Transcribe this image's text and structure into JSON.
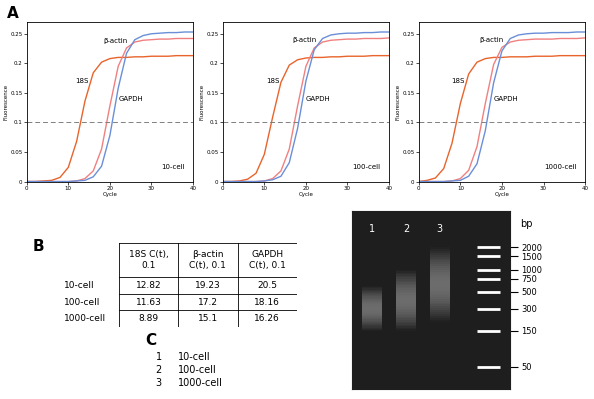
{
  "panel_labels": [
    "A",
    "B",
    "C"
  ],
  "chart_data": [
    {
      "type": "line",
      "annotations": [
        "10-cell"
      ],
      "x_label": "Cycle",
      "y_label": "Fluorescence",
      "threshold": 0.1,
      "xlim": [
        0,
        40
      ],
      "xticks": [
        0,
        10,
        20,
        30,
        40
      ],
      "ylim": [
        0,
        0.27
      ],
      "yticks": [
        0,
        0.05,
        0.1,
        0.15,
        0.2,
        0.25
      ],
      "x": [
        0,
        2,
        4,
        6,
        8,
        10,
        12,
        14,
        16,
        18,
        20,
        22,
        24,
        26,
        28,
        30,
        32,
        34,
        36,
        38,
        40
      ],
      "series": [
        {
          "name": "18S",
          "color": "#e8642c",
          "values": [
            0,
            0,
            0.001,
            0.002,
            0.007,
            0.024,
            0.068,
            0.136,
            0.184,
            0.202,
            0.208,
            0.21,
            0.21,
            0.211,
            0.211,
            0.212,
            0.212,
            0.212,
            0.213,
            0.213,
            0.213
          ]
        },
        {
          "name": "β-actin",
          "color": "#f08080",
          "values": [
            0,
            0,
            0,
            0,
            0,
            0,
            0.001,
            0.005,
            0.018,
            0.055,
            0.128,
            0.195,
            0.226,
            0.236,
            0.239,
            0.24,
            0.241,
            0.241,
            0.242,
            0.242,
            0.242
          ]
        },
        {
          "name": "GAPDH",
          "color": "#6a8fd8",
          "values": [
            0,
            0,
            0,
            0,
            0,
            0,
            0.001,
            0.002,
            0.008,
            0.026,
            0.078,
            0.158,
            0.217,
            0.24,
            0.247,
            0.25,
            0.251,
            0.252,
            0.252,
            0.253,
            0.253
          ]
        }
      ]
    },
    {
      "type": "line",
      "annotations": [
        "100-cell"
      ],
      "x_label": "Cycle",
      "y_label": "Fluorescence",
      "threshold": 0.1,
      "xlim": [
        0,
        40
      ],
      "xticks": [
        0,
        10,
        20,
        30,
        40
      ],
      "ylim": [
        0,
        0.27
      ],
      "yticks": [
        0,
        0.05,
        0.1,
        0.15,
        0.2,
        0.25
      ],
      "x": [
        0,
        2,
        4,
        6,
        8,
        10,
        12,
        14,
        16,
        18,
        20,
        22,
        24,
        26,
        28,
        30,
        32,
        34,
        36,
        38,
        40
      ],
      "series": [
        {
          "name": "18S",
          "color": "#e8642c",
          "values": [
            0,
            0,
            0.001,
            0.004,
            0.014,
            0.046,
            0.109,
            0.168,
            0.197,
            0.206,
            0.209,
            0.21,
            0.21,
            0.211,
            0.211,
            0.212,
            0.212,
            0.212,
            0.213,
            0.213,
            0.213
          ]
        },
        {
          "name": "β-actin",
          "color": "#f08080",
          "values": [
            0,
            0,
            0,
            0,
            0,
            0.001,
            0.005,
            0.018,
            0.055,
            0.128,
            0.195,
            0.226,
            0.236,
            0.239,
            0.24,
            0.241,
            0.241,
            0.242,
            0.242,
            0.242,
            0.243
          ]
        },
        {
          "name": "GAPDH",
          "color": "#6a8fd8",
          "values": [
            0,
            0,
            0,
            0,
            0,
            0.001,
            0.003,
            0.009,
            0.032,
            0.09,
            0.17,
            0.223,
            0.242,
            0.248,
            0.25,
            0.251,
            0.251,
            0.252,
            0.252,
            0.253,
            0.253
          ]
        }
      ]
    },
    {
      "type": "line",
      "annotations": [
        "1000-cell"
      ],
      "x_label": "Cycle",
      "y_label": "Fluorescence",
      "threshold": 0.1,
      "xlim": [
        0,
        40
      ],
      "xticks": [
        0,
        10,
        20,
        30,
        40
      ],
      "ylim": [
        0,
        0.27
      ],
      "yticks": [
        0,
        0.05,
        0.1,
        0.15,
        0.2,
        0.25
      ],
      "x": [
        0,
        2,
        4,
        6,
        8,
        10,
        12,
        14,
        16,
        18,
        20,
        22,
        24,
        26,
        28,
        30,
        32,
        34,
        36,
        38,
        40
      ],
      "series": [
        {
          "name": "18S",
          "color": "#e8642c",
          "values": [
            0,
            0.002,
            0.006,
            0.022,
            0.065,
            0.132,
            0.182,
            0.202,
            0.208,
            0.21,
            0.21,
            0.211,
            0.211,
            0.211,
            0.212,
            0.212,
            0.212,
            0.213,
            0.213,
            0.213,
            0.213
          ]
        },
        {
          "name": "β-actin",
          "color": "#f08080",
          "values": [
            0,
            0,
            0,
            0,
            0.001,
            0.005,
            0.019,
            0.059,
            0.132,
            0.198,
            0.227,
            0.236,
            0.239,
            0.24,
            0.241,
            0.241,
            0.241,
            0.242,
            0.242,
            0.242,
            0.243
          ]
        },
        {
          "name": "GAPDH",
          "color": "#6a8fd8",
          "values": [
            0,
            0,
            0,
            0,
            0.001,
            0.002,
            0.009,
            0.03,
            0.086,
            0.167,
            0.221,
            0.242,
            0.248,
            0.25,
            0.251,
            0.251,
            0.252,
            0.252,
            0.252,
            0.253,
            0.253
          ]
        }
      ]
    }
  ],
  "table": {
    "columns": [
      "18S C(t),\n0.1",
      "β-actin\nC(t), 0.1",
      "GAPDH\nC(t), 0.1"
    ],
    "rows": [
      {
        "label": "10-cell",
        "values": [
          12.82,
          19.23,
          20.5
        ]
      },
      {
        "label": "100-cell",
        "values": [
          11.63,
          17.2,
          18.16
        ]
      },
      {
        "label": "1000-cell",
        "values": [
          8.89,
          15.1,
          16.26
        ]
      }
    ]
  },
  "gel": {
    "unit": "bp",
    "log": true,
    "ylim": [
      25,
      6000
    ],
    "ladder": [
      2000,
      1500,
      1000,
      750,
      500,
      300,
      150,
      50
    ],
    "lanes": [
      {
        "label": "1",
        "sample": "10-cell",
        "smear": [
          150,
          600
        ]
      },
      {
        "label": "2",
        "sample": "100-cell",
        "smear": [
          150,
          1000
        ]
      },
      {
        "label": "3",
        "sample": "1000-cell",
        "smear": [
          200,
          2000
        ]
      }
    ]
  }
}
